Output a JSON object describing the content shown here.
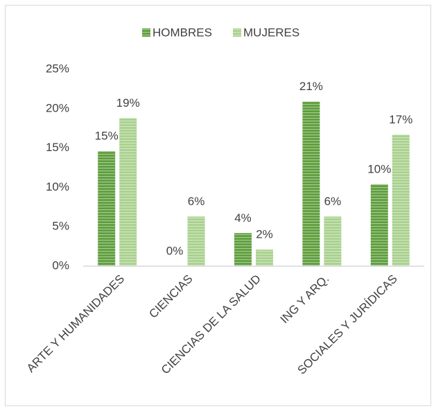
{
  "chart_data": {
    "type": "bar",
    "categories": [
      "ARTE Y HUMANIDADES",
      "CIENCIAS",
      "CIENCIAS DE LA SALUD",
      "ING Y ARQ.",
      "SOCIALES Y JURÍDICAS"
    ],
    "series": [
      {
        "name": "HOMBRES",
        "color": "#5e9e3c",
        "values": [
          14.6,
          0,
          4.2,
          20.9,
          10.4
        ],
        "value_labels": [
          "15%",
          "0%",
          "4%",
          "21%",
          "10%"
        ]
      },
      {
        "name": "MUJERES",
        "color": "#a9d18e",
        "values": [
          18.8,
          6.3,
          2.1,
          6.3,
          16.7
        ],
        "value_labels": [
          "19%",
          "6%",
          "2%",
          "6%",
          "17%"
        ]
      }
    ],
    "ylim": [
      0,
      25
    ],
    "yticks": [
      {
        "value": 0,
        "label": "0%"
      },
      {
        "value": 5,
        "label": "5%"
      },
      {
        "value": 10,
        "label": "10%"
      },
      {
        "value": 15,
        "label": "15%"
      },
      {
        "value": 20,
        "label": "20%"
      },
      {
        "value": 25,
        "label": "25%"
      }
    ],
    "legend": "top",
    "grid": false
  }
}
